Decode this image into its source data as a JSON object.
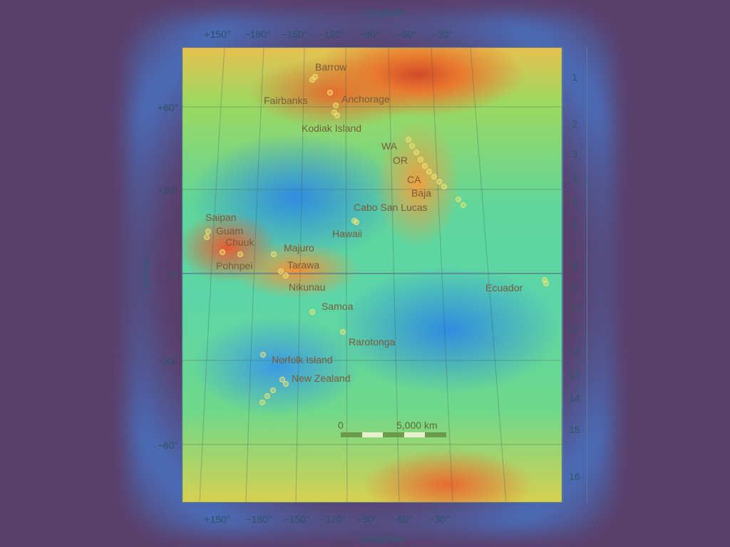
{
  "axes": {
    "x_title": "Longitude",
    "y_title": "Latitude",
    "lon_ticks": [
      "+150°",
      "−180°",
      "−150°",
      "−120°",
      "−90°",
      "−60°",
      "−30°"
    ],
    "lat_ticks": [
      "+60°",
      "+30°",
      "0°",
      "−30°",
      "−60°"
    ]
  },
  "places": [
    {
      "name": "Barrow"
    },
    {
      "name": "Fairbanks"
    },
    {
      "name": "Anchorage"
    },
    {
      "name": "Kodiak Island"
    },
    {
      "name": "WA"
    },
    {
      "name": "OR"
    },
    {
      "name": "CA"
    },
    {
      "name": "Baja"
    },
    {
      "name": "Cabo San Lucas"
    },
    {
      "name": "Hawaii"
    },
    {
      "name": "Saipan"
    },
    {
      "name": "Guam"
    },
    {
      "name": "Chuuk"
    },
    {
      "name": "Pohnpei"
    },
    {
      "name": "Majuro"
    },
    {
      "name": "Tarawa"
    },
    {
      "name": "Nikunau"
    },
    {
      "name": "Samoa"
    },
    {
      "name": "Rarotonga"
    },
    {
      "name": "Norfolk Island"
    },
    {
      "name": "New Zealand"
    },
    {
      "name": "Ecuador"
    }
  ],
  "zones": [
    "1",
    "2",
    "3",
    "4",
    "5",
    "6",
    "7",
    "8",
    "9",
    "10",
    "11",
    "12",
    "13",
    "14",
    "15",
    "16"
  ],
  "scale": {
    "start": "0",
    "end": "5,000 km"
  },
  "colors": {
    "background": "#5a3f6a",
    "heat_high": "#d24a2a",
    "heat_mid": "#f0d050",
    "heat_low": "#2f8ce0",
    "marker": "#f0e070"
  }
}
